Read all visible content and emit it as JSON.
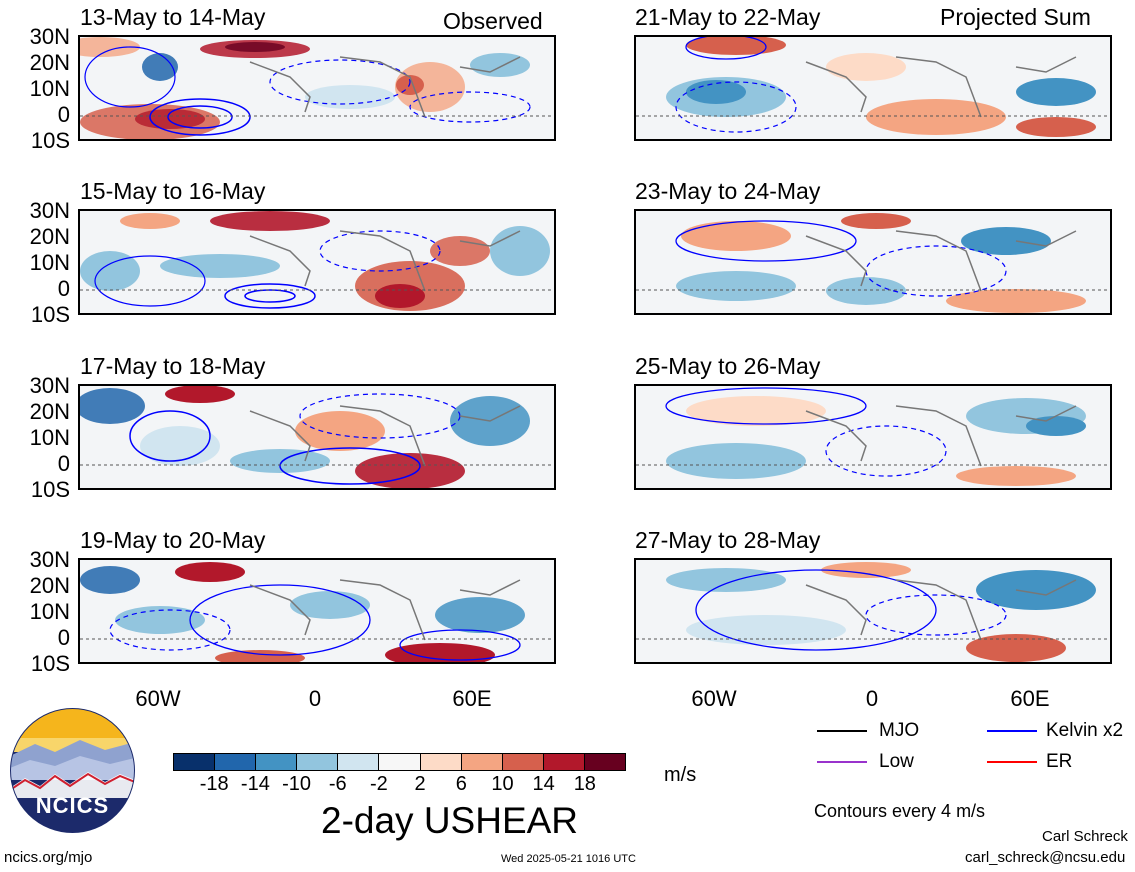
{
  "panels_left": [
    {
      "title": "13-May to 14-May",
      "corner": "Observed"
    },
    {
      "title": "15-May to 16-May",
      "corner": ""
    },
    {
      "title": "17-May to 18-May",
      "corner": ""
    },
    {
      "title": "19-May to 20-May",
      "corner": ""
    }
  ],
  "panels_right": [
    {
      "title": "21-May to 22-May",
      "corner": "Projected Sum"
    },
    {
      "title": "23-May to 24-May",
      "corner": ""
    },
    {
      "title": "25-May to 26-May",
      "corner": ""
    },
    {
      "title": "27-May to 28-May",
      "corner": ""
    }
  ],
  "lat_labels": [
    "30N",
    "20N",
    "10N",
    "0",
    "10S"
  ],
  "lon_labels": [
    "60W",
    "0",
    "60E"
  ],
  "colorbar": {
    "title": "2-day USHEAR",
    "units": "m/s",
    "tick_labels": [
      "-18",
      "-14",
      "-10",
      "-6",
      "-2",
      "2",
      "6",
      "10",
      "14",
      "18"
    ],
    "colors": [
      "#08306b",
      "#2166ac",
      "#4393c3",
      "#92c5de",
      "#d1e5f0",
      "#f7f7f7",
      "#fddbc7",
      "#f4a582",
      "#d6604d",
      "#b2182b",
      "#67001f"
    ]
  },
  "legend": {
    "items": [
      {
        "label": "MJO",
        "color": "#000000"
      },
      {
        "label": "Kelvin x2",
        "color": "#0000ff"
      },
      {
        "label": "Low",
        "color": "#9933cc"
      },
      {
        "label": "ER",
        "color": "#ff0000"
      }
    ],
    "note": "Contours every 4 m/s"
  },
  "logo": {
    "text": "NCICS"
  },
  "footer": {
    "url": "ncics.org/mjo",
    "timestamp": "Wed 2025-05-21 1016 UTC",
    "author": "Carl Schreck",
    "email": "carl_schreck@ncsu.edu"
  }
}
